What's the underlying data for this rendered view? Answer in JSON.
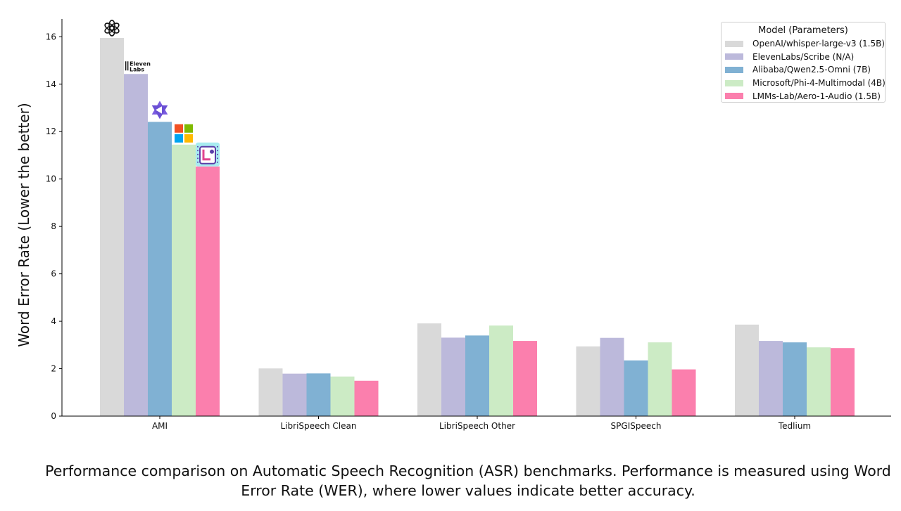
{
  "chart_data": {
    "type": "bar",
    "categories": [
      "AMI",
      "LibriSpeech Clean",
      "LibriSpeech Other",
      "SPGISpeech",
      "Tedlium"
    ],
    "series": [
      {
        "name": "OpenAI/whisper-large-v3 (1.5B)",
        "color": "#d9d9d9",
        "values": [
          15.95,
          2.01,
          3.91,
          2.94,
          3.86
        ]
      },
      {
        "name": "ElevenLabs/Scribe (N/A)",
        "color": "#bcb9db",
        "values": [
          14.43,
          1.79,
          3.31,
          3.3,
          3.17
        ]
      },
      {
        "name": "Alibaba/Qwen2.5-Omni (7B)",
        "color": "#80b1d3",
        "values": [
          12.41,
          1.8,
          3.4,
          2.35,
          3.11
        ]
      },
      {
        "name": "Microsoft/Phi-4-Multimodal (4B)",
        "color": "#ccebc5",
        "values": [
          11.45,
          1.67,
          3.82,
          3.11,
          2.9
        ]
      },
      {
        "name": "LMMs-Lab/Aero-1-Audio (1.5B)",
        "color": "#fb7fad",
        "values": [
          10.53,
          1.49,
          3.17,
          1.97,
          2.87
        ]
      }
    ],
    "ylabel": "Word Error Rate (Lower the better)",
    "ylim": [
      0,
      16.75
    ],
    "yticks": [
      0,
      2,
      4,
      6,
      8,
      10,
      12,
      14,
      16
    ],
    "legend_title": "Model (Parameters)",
    "legend_position": "top-right",
    "grid": false
  },
  "logos": [
    {
      "name": "openai-logo-icon"
    },
    {
      "name": "elevenlabs-logo-icon",
      "text_line1": "Eleven",
      "text_line2": "Labs"
    },
    {
      "name": "qwen-logo-icon"
    },
    {
      "name": "microsoft-logo-icon",
      "colors": [
        "#f25022",
        "#7fba00",
        "#00a4ef",
        "#ffb900"
      ]
    },
    {
      "name": "aero-logo-icon"
    }
  ],
  "caption": "Performance comparison on Automatic Speech Recognition (ASR) benchmarks. Performance is measured using Word Error Rate (WER), where lower values indicate better accuracy."
}
